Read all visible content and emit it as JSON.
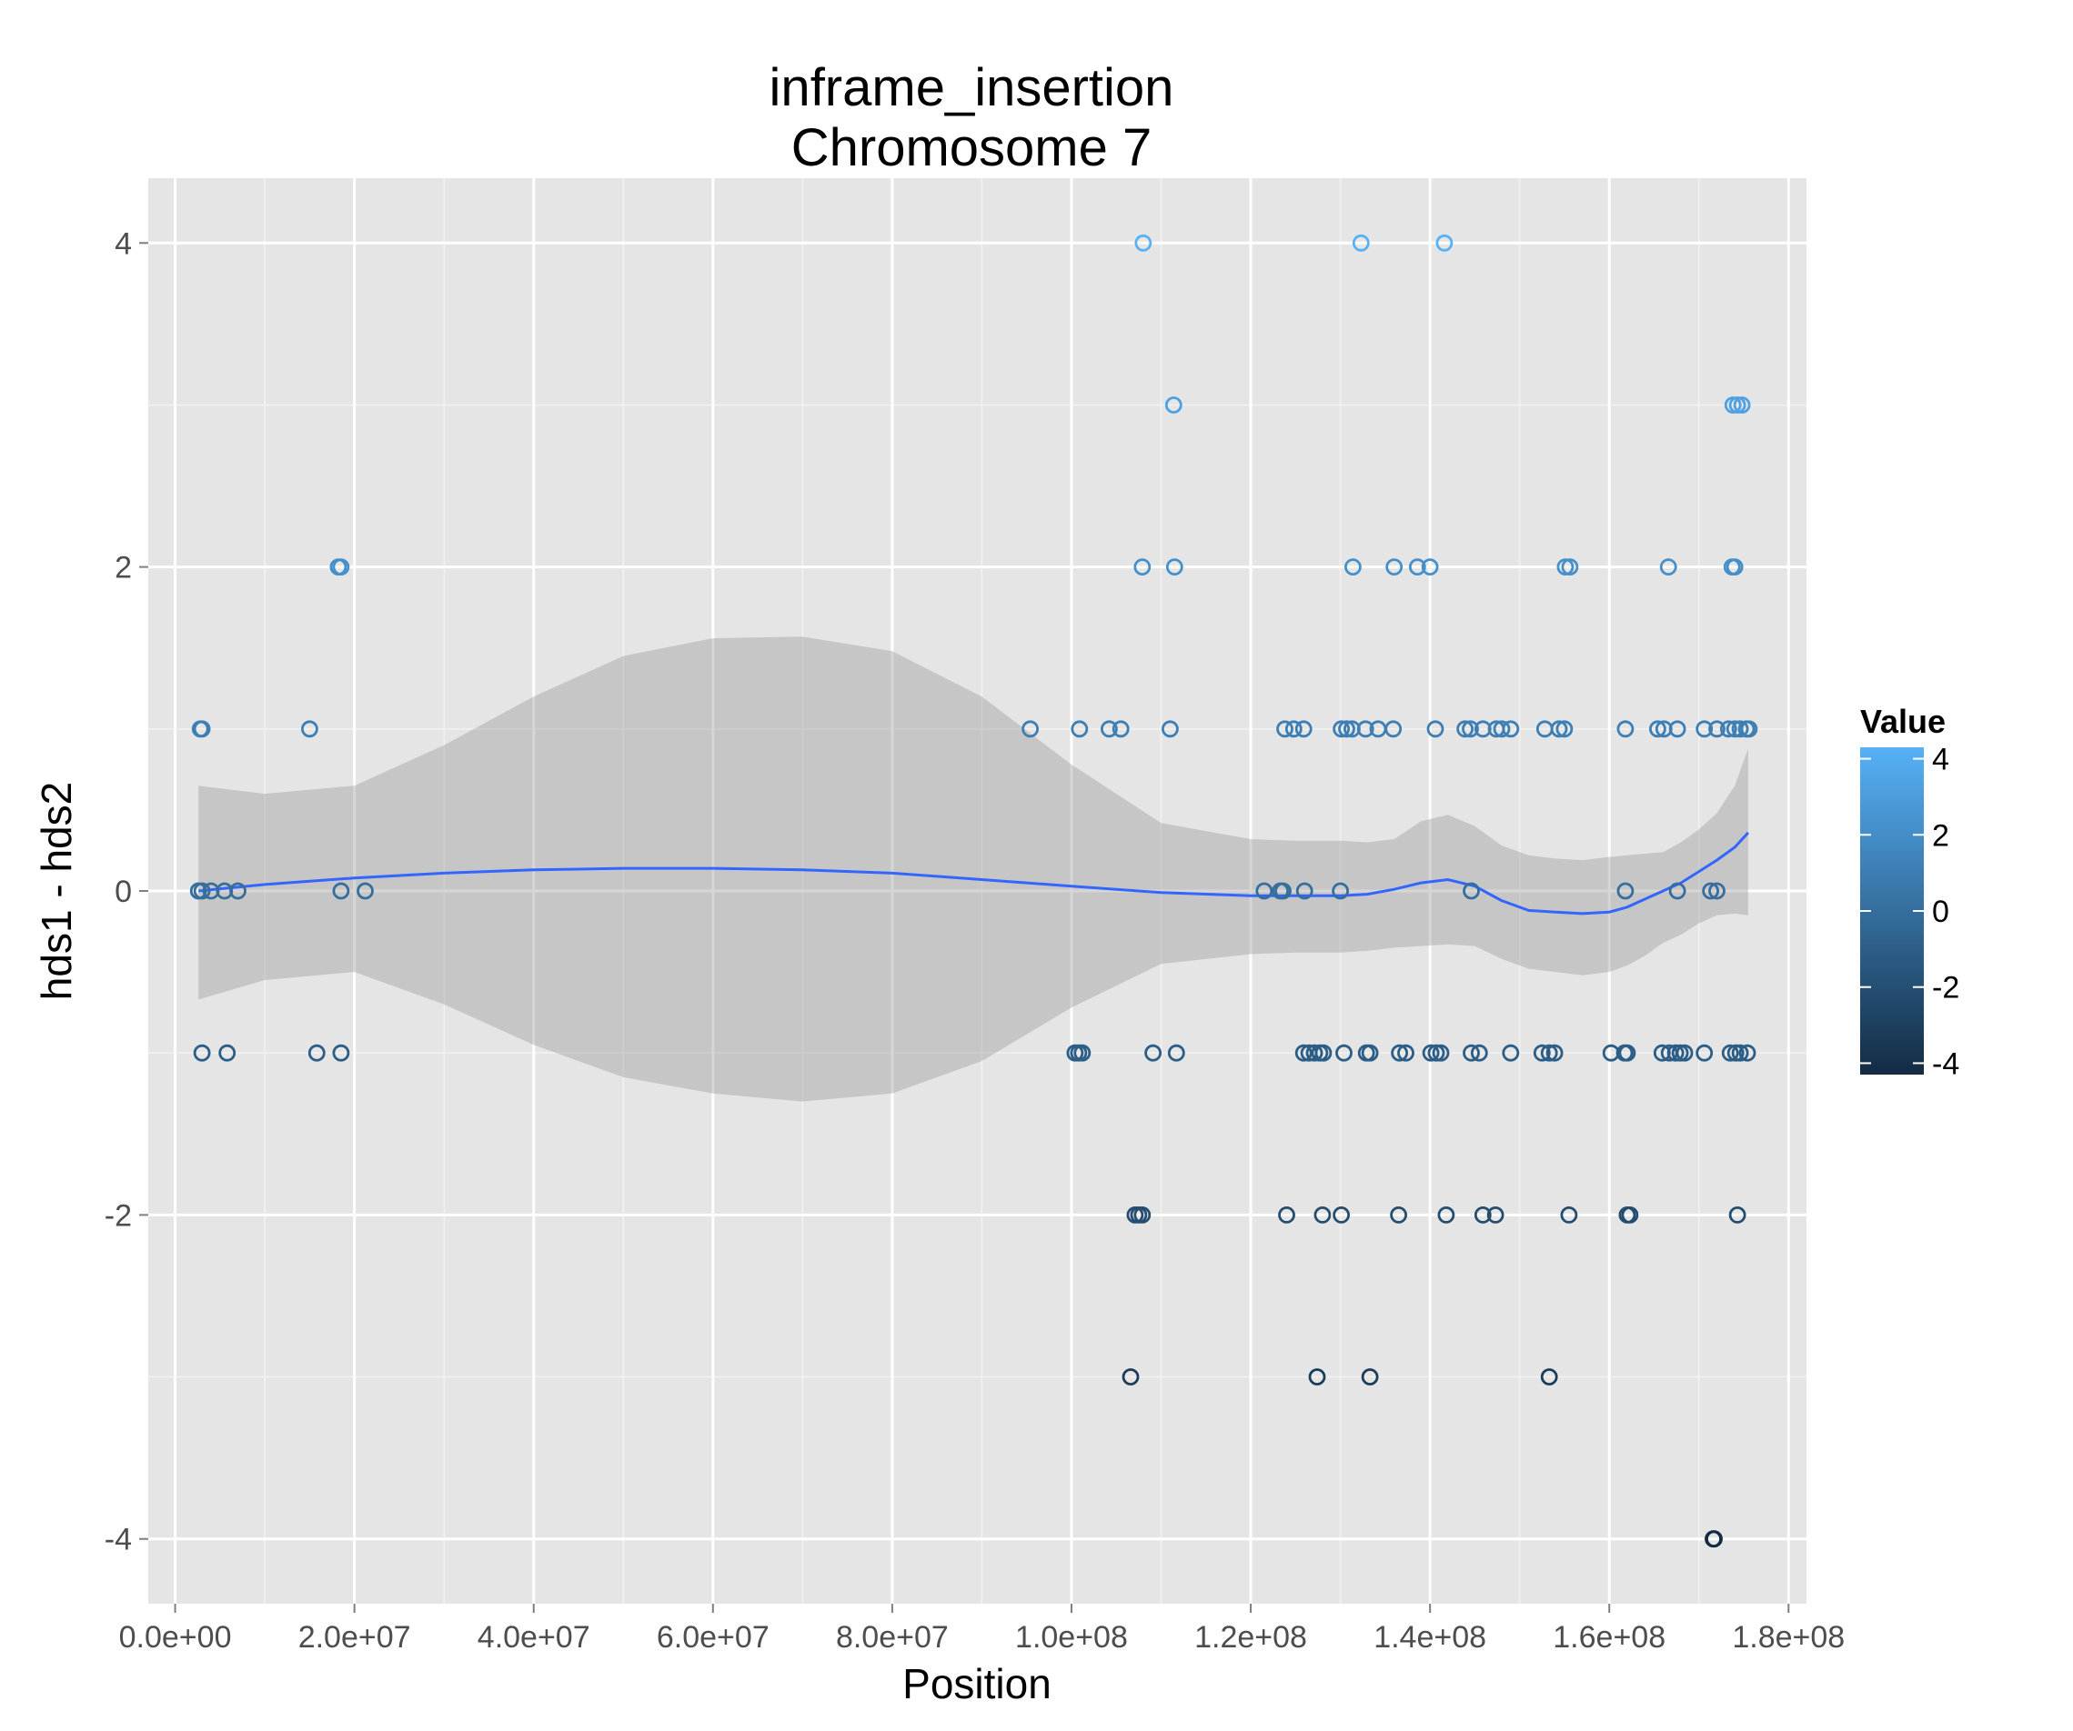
{
  "chart_data": {
    "type": "scatter",
    "title": "inframe_insertion",
    "subtitle": "Chromosome 7",
    "xlabel": "Position",
    "ylabel": "hds1 - hds2",
    "xlim": [
      -3000000,
      182000000
    ],
    "ylim": [
      -4.4,
      4.4
    ],
    "x_ticks": [
      0,
      20000000,
      40000000,
      60000000,
      80000000,
      100000000,
      120000000,
      140000000,
      160000000,
      180000000
    ],
    "x_tick_labels": [
      "0.0e+00",
      "2.0e+07",
      "4.0e+07",
      "6.0e+07",
      "8.0e+07",
      "1.0e+08",
      "1.2e+08",
      "1.4e+08",
      "1.6e+08",
      "1.8e+08"
    ],
    "y_ticks": [
      -4,
      -2,
      0,
      2,
      4
    ],
    "y_tick_labels": [
      "-4",
      "-2",
      "0",
      "2",
      "4"
    ],
    "grid": true,
    "legend": {
      "title": "Value",
      "position": "right",
      "labels": [
        "4",
        "2",
        "0",
        "-2",
        "-4"
      ],
      "values": [
        4,
        2,
        0,
        -2,
        -4
      ],
      "color_low": "#132b43",
      "color_high": "#56b1f7"
    },
    "colors": {
      "panel": "#e5e5e5",
      "grid_major": "#ffffff",
      "grid_minor": "#f2f2f2",
      "smooth_line": "#3366ff",
      "ribbon": "#999999"
    },
    "points": [
      [
        2800000,
        1
      ],
      [
        3000000,
        1
      ],
      [
        15000000,
        1
      ],
      [
        18200000,
        2
      ],
      [
        18500000,
        2
      ],
      [
        2600000,
        0
      ],
      [
        3000000,
        0
      ],
      [
        4000000,
        0
      ],
      [
        5500000,
        0
      ],
      [
        7000000,
        0
      ],
      [
        18500000,
        0
      ],
      [
        21200000,
        0
      ],
      [
        3000000,
        -1
      ],
      [
        5800000,
        -1
      ],
      [
        15800000,
        -1
      ],
      [
        18500000,
        -1
      ],
      [
        108000000,
        4
      ],
      [
        132300000,
        4
      ],
      [
        141600000,
        4
      ],
      [
        111400000,
        3
      ],
      [
        173800000,
        3
      ],
      [
        174300000,
        3
      ],
      [
        174800000,
        3
      ],
      [
        107900000,
        2
      ],
      [
        111500000,
        2
      ],
      [
        131400000,
        2
      ],
      [
        136000000,
        2
      ],
      [
        138600000,
        2
      ],
      [
        140000000,
        2
      ],
      [
        155100000,
        2
      ],
      [
        155600000,
        2
      ],
      [
        166600000,
        2
      ],
      [
        173700000,
        2
      ],
      [
        174000000,
        2
      ],
      [
        95400000,
        1
      ],
      [
        100900000,
        1
      ],
      [
        104200000,
        1
      ],
      [
        105500000,
        1
      ],
      [
        111000000,
        1
      ],
      [
        123800000,
        1
      ],
      [
        124800000,
        1
      ],
      [
        125900000,
        1
      ],
      [
        130100000,
        1
      ],
      [
        130700000,
        1
      ],
      [
        131300000,
        1
      ],
      [
        132800000,
        1
      ],
      [
        134200000,
        1
      ],
      [
        135900000,
        1
      ],
      [
        140600000,
        1
      ],
      [
        143900000,
        1
      ],
      [
        144500000,
        1
      ],
      [
        145900000,
        1
      ],
      [
        147400000,
        1
      ],
      [
        148000000,
        1
      ],
      [
        149000000,
        1
      ],
      [
        152800000,
        1
      ],
      [
        154400000,
        1
      ],
      [
        155000000,
        1
      ],
      [
        161800000,
        1
      ],
      [
        165400000,
        1
      ],
      [
        166100000,
        1
      ],
      [
        167600000,
        1
      ],
      [
        170600000,
        1
      ],
      [
        172000000,
        1
      ],
      [
        173300000,
        1
      ],
      [
        174000000,
        1
      ],
      [
        174600000,
        1
      ],
      [
        175300000,
        1
      ],
      [
        175600000,
        1
      ],
      [
        121500000,
        0
      ],
      [
        123300000,
        0
      ],
      [
        123600000,
        0
      ],
      [
        126000000,
        0
      ],
      [
        130000000,
        0
      ],
      [
        144600000,
        0
      ],
      [
        161800000,
        0
      ],
      [
        167600000,
        0
      ],
      [
        171300000,
        0
      ],
      [
        172000000,
        0
      ],
      [
        100400000,
        -1
      ],
      [
        100800000,
        -1
      ],
      [
        101200000,
        -1
      ],
      [
        109100000,
        -1
      ],
      [
        111700000,
        -1
      ],
      [
        125900000,
        -1
      ],
      [
        126500000,
        -1
      ],
      [
        127100000,
        -1
      ],
      [
        127700000,
        -1
      ],
      [
        128100000,
        -1
      ],
      [
        130400000,
        -1
      ],
      [
        132900000,
        -1
      ],
      [
        133300000,
        -1
      ],
      [
        136600000,
        -1
      ],
      [
        137300000,
        -1
      ],
      [
        140100000,
        -1
      ],
      [
        140700000,
        -1
      ],
      [
        141200000,
        -1
      ],
      [
        144600000,
        -1
      ],
      [
        145500000,
        -1
      ],
      [
        149000000,
        -1
      ],
      [
        152500000,
        -1
      ],
      [
        153300000,
        -1
      ],
      [
        153900000,
        -1
      ],
      [
        160200000,
        -1
      ],
      [
        161700000,
        -1
      ],
      [
        162000000,
        -1
      ],
      [
        165900000,
        -1
      ],
      [
        166700000,
        -1
      ],
      [
        167400000,
        -1
      ],
      [
        167900000,
        -1
      ],
      [
        168400000,
        -1
      ],
      [
        170600000,
        -1
      ],
      [
        173500000,
        -1
      ],
      [
        174100000,
        -1
      ],
      [
        174600000,
        -1
      ],
      [
        175400000,
        -1
      ],
      [
        107100000,
        -2
      ],
      [
        107500000,
        -2
      ],
      [
        107900000,
        -2
      ],
      [
        124000000,
        -2
      ],
      [
        128000000,
        -2
      ],
      [
        130100000,
        -2
      ],
      [
        136500000,
        -2
      ],
      [
        141800000,
        -2
      ],
      [
        145900000,
        -2
      ],
      [
        147300000,
        -2
      ],
      [
        155500000,
        -2
      ],
      [
        162000000,
        -2
      ],
      [
        162300000,
        -2
      ],
      [
        174300000,
        -2
      ],
      [
        106600000,
        -3
      ],
      [
        127400000,
        -3
      ],
      [
        133300000,
        -3
      ],
      [
        153300000,
        -3
      ],
      [
        171600000,
        -4
      ],
      [
        171700000,
        -4
      ]
    ],
    "smooth": {
      "x": [
        2600000,
        10000000,
        20000000,
        30000000,
        40000000,
        50000000,
        60000000,
        70000000,
        80000000,
        90000000,
        100000000,
        110000000,
        120000000,
        125000000,
        130000000,
        133000000,
        136000000,
        139000000,
        142000000,
        145000000,
        148000000,
        151000000,
        154000000,
        157000000,
        160000000,
        162000000,
        164000000,
        166000000,
        168000000,
        170000000,
        172000000,
        174000000,
        175500000
      ],
      "y": [
        0.0,
        0.04,
        0.08,
        0.11,
        0.13,
        0.14,
        0.14,
        0.13,
        0.11,
        0.07,
        0.03,
        -0.01,
        -0.03,
        -0.03,
        -0.03,
        -0.02,
        0.01,
        0.05,
        0.07,
        0.03,
        -0.06,
        -0.12,
        -0.13,
        -0.14,
        -0.13,
        -0.1,
        -0.05,
        0.0,
        0.05,
        0.12,
        0.19,
        0.27,
        0.36
      ],
      "upper": [
        0.65,
        0.6,
        0.65,
        0.9,
        1.2,
        1.45,
        1.56,
        1.57,
        1.48,
        1.2,
        0.78,
        0.42,
        0.32,
        0.31,
        0.31,
        0.3,
        0.32,
        0.43,
        0.47,
        0.4,
        0.28,
        0.22,
        0.2,
        0.19,
        0.21,
        0.22,
        0.23,
        0.24,
        0.3,
        0.38,
        0.48,
        0.65,
        0.88
      ],
      "lower": [
        -0.67,
        -0.55,
        -0.5,
        -0.7,
        -0.95,
        -1.15,
        -1.25,
        -1.3,
        -1.25,
        -1.05,
        -0.72,
        -0.45,
        -0.39,
        -0.38,
        -0.38,
        -0.37,
        -0.35,
        -0.34,
        -0.33,
        -0.34,
        -0.42,
        -0.48,
        -0.5,
        -0.52,
        -0.5,
        -0.46,
        -0.4,
        -0.32,
        -0.27,
        -0.2,
        -0.15,
        -0.14,
        -0.15
      ]
    }
  }
}
